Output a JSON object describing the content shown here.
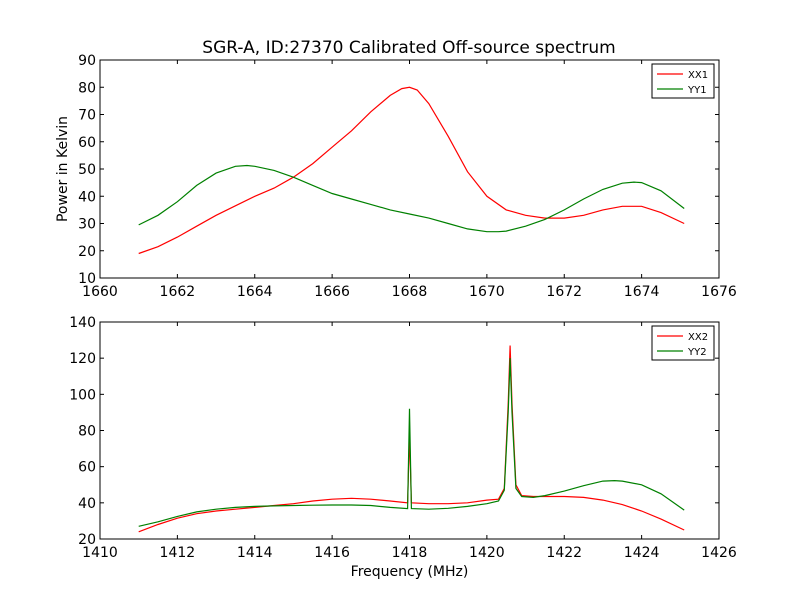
{
  "figure": {
    "title": "SGR-A, ID:27370 Calibrated Off-source spectrum"
  },
  "chart_data": [
    {
      "type": "line",
      "title": "SGR-A, ID:27370 Calibrated Off-source spectrum",
      "xlabel": "",
      "ylabel": "Power in Kelvin",
      "xlim": [
        1660,
        1676
      ],
      "ylim": [
        10,
        90
      ],
      "xticks": [
        1660,
        1662,
        1664,
        1666,
        1668,
        1670,
        1672,
        1674,
        1676
      ],
      "yticks": [
        10,
        20,
        30,
        40,
        50,
        60,
        70,
        80,
        90
      ],
      "grid": false,
      "legend_position": "top-right",
      "series": [
        {
          "name": "XX1",
          "color": "#ff0000",
          "x": [
            1661.0,
            1661.5,
            1662.0,
            1662.5,
            1663.0,
            1663.5,
            1664.0,
            1664.5,
            1665.0,
            1665.5,
            1666.0,
            1666.5,
            1667.0,
            1667.5,
            1667.8,
            1668.0,
            1668.2,
            1668.5,
            1669.0,
            1669.5,
            1670.0,
            1670.5,
            1671.0,
            1671.5,
            1672.0,
            1672.5,
            1673.0,
            1673.5,
            1674.0,
            1674.5,
            1675.1
          ],
          "y": [
            19,
            21.5,
            25,
            29,
            33,
            36.5,
            40,
            43,
            47,
            52,
            58,
            64,
            71,
            77,
            79.5,
            80,
            79,
            74,
            62,
            49,
            40,
            35,
            33,
            32,
            32,
            33,
            35,
            36.3,
            36.3,
            34,
            30
          ]
        },
        {
          "name": "YY1",
          "color": "#008000",
          "x": [
            1661.0,
            1661.5,
            1662.0,
            1662.5,
            1663.0,
            1663.5,
            1663.8,
            1664.0,
            1664.5,
            1665.0,
            1665.5,
            1666.0,
            1666.5,
            1667.0,
            1667.5,
            1668.0,
            1668.5,
            1669.0,
            1669.5,
            1670.0,
            1670.3,
            1670.5,
            1671.0,
            1671.5,
            1672.0,
            1672.5,
            1673.0,
            1673.5,
            1673.8,
            1674.0,
            1674.5,
            1675.1
          ],
          "y": [
            29.5,
            33,
            38,
            44,
            48.5,
            51,
            51.3,
            51,
            49.5,
            47,
            44,
            41,
            39,
            37,
            35,
            33.5,
            32,
            30,
            28,
            27,
            27,
            27.2,
            29,
            31.5,
            35,
            39,
            42.5,
            44.8,
            45.2,
            45,
            42,
            35.5
          ]
        }
      ]
    },
    {
      "type": "line",
      "title": "",
      "xlabel": "Frequency (MHz)",
      "ylabel": "",
      "xlim": [
        1410,
        1426
      ],
      "ylim": [
        20,
        140
      ],
      "xticks": [
        1410,
        1412,
        1414,
        1416,
        1418,
        1420,
        1422,
        1424,
        1426
      ],
      "yticks": [
        20,
        40,
        60,
        80,
        100,
        120,
        140
      ],
      "grid": false,
      "legend_position": "top-right",
      "series": [
        {
          "name": "XX2",
          "color": "#ff0000",
          "x": [
            1411.0,
            1411.5,
            1412.0,
            1412.5,
            1413.0,
            1413.5,
            1414.0,
            1414.5,
            1415.0,
            1415.5,
            1416.0,
            1416.5,
            1417.0,
            1417.5,
            1417.95,
            1418.0,
            1418.05,
            1418.5,
            1419.0,
            1419.5,
            1420.0,
            1420.3,
            1420.45,
            1420.55,
            1420.6,
            1420.65,
            1420.75,
            1420.9,
            1421.2,
            1421.5,
            1422.0,
            1422.5,
            1423.0,
            1423.5,
            1424.0,
            1424.5,
            1425.1
          ],
          "y": [
            24,
            28,
            31.5,
            34,
            35.5,
            36.5,
            37.5,
            38.5,
            39.5,
            41,
            42,
            42.5,
            42,
            41,
            40,
            78,
            40,
            39.5,
            39.5,
            40,
            41.5,
            42,
            48,
            95,
            127,
            95,
            50,
            44,
            43.5,
            43.5,
            43.5,
            43,
            41.5,
            39,
            35.5,
            31,
            25
          ]
        },
        {
          "name": "YY2",
          "color": "#008000",
          "x": [
            1411.0,
            1411.5,
            1412.0,
            1412.5,
            1413.0,
            1413.5,
            1414.0,
            1414.5,
            1415.0,
            1415.5,
            1416.0,
            1416.5,
            1417.0,
            1417.5,
            1417.95,
            1418.0,
            1418.05,
            1418.5,
            1419.0,
            1419.5,
            1420.0,
            1420.3,
            1420.45,
            1420.55,
            1420.6,
            1420.65,
            1420.75,
            1420.9,
            1421.2,
            1421.5,
            1422.0,
            1422.5,
            1423.0,
            1423.3,
            1423.5,
            1424.0,
            1424.5,
            1425.1
          ],
          "y": [
            27,
            29.5,
            32.5,
            35,
            36.5,
            37.5,
            38,
            38.3,
            38.5,
            38.7,
            38.8,
            38.8,
            38.5,
            37.5,
            36.8,
            92,
            36.8,
            36.5,
            37,
            38,
            39.5,
            41,
            47,
            90,
            120,
            90,
            48,
            43.5,
            43,
            44,
            46.5,
            49.5,
            52,
            52.3,
            52,
            50,
            45,
            36
          ]
        }
      ]
    }
  ]
}
